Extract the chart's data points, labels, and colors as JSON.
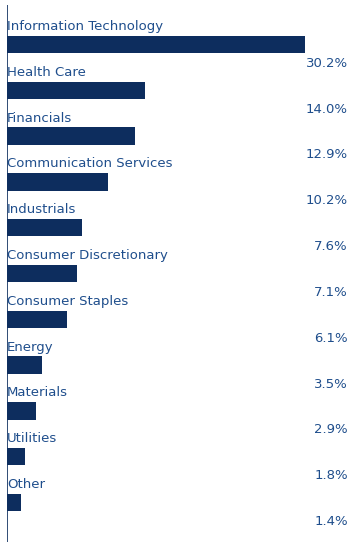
{
  "categories": [
    "Information Technology",
    "Health Care",
    "Financials",
    "Communication Services",
    "Industrials",
    "Consumer Discretionary",
    "Consumer Staples",
    "Energy",
    "Materials",
    "Utilities",
    "Other"
  ],
  "values": [
    30.2,
    14.0,
    12.9,
    10.2,
    7.6,
    7.1,
    6.1,
    3.5,
    2.9,
    1.8,
    1.4
  ],
  "bar_color": "#0d2d5e",
  "text_color": "#1f4e8c",
  "value_color": "#1f4e8c",
  "background_color": "#ffffff",
  "bar_height": 0.38,
  "xlim": [
    0,
    35
  ],
  "label_fontsize": 9.5,
  "value_fontsize": 9.5
}
